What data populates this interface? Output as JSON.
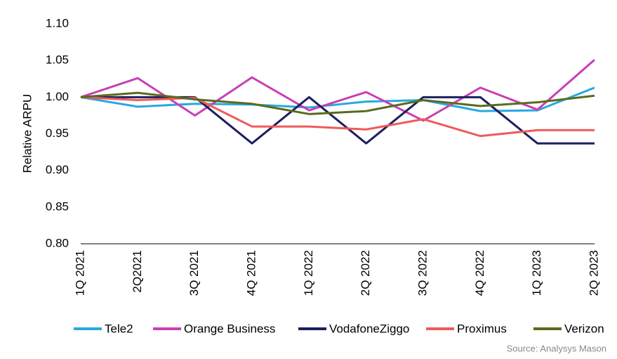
{
  "chart_data": {
    "type": "line",
    "y_label": "Relative ARPU",
    "source": "Source: Analysys Mason",
    "categories": [
      "1Q 2021",
      "2Q2021",
      "3Q 2021",
      "4Q 2021",
      "1Q 2022",
      "2Q 2022",
      "3Q 2022",
      "4Q 2022",
      "1Q 2023",
      "2Q 2023"
    ],
    "series": [
      {
        "name": "Tele2",
        "color": "#29a8e0",
        "values": [
          1.0,
          0.987,
          0.991,
          0.99,
          0.986,
          0.994,
          0.996,
          0.981,
          0.982,
          1.013
        ]
      },
      {
        "name": "Orange Business",
        "color": "#c93fb5",
        "values": [
          1.0,
          1.026,
          0.975,
          1.027,
          0.982,
          1.007,
          0.968,
          1.013,
          0.983,
          1.051
        ]
      },
      {
        "name": "VodafoneZiggo",
        "color": "#1c1f5e",
        "values": [
          1.0,
          1.0,
          1.0,
          0.937,
          1.0,
          0.937,
          1.0,
          1.0,
          0.937,
          0.937
        ]
      },
      {
        "name": "Proximus",
        "color": "#ef5b5b",
        "values": [
          1.0,
          0.996,
          0.999,
          0.96,
          0.96,
          0.956,
          0.97,
          0.947,
          0.955,
          0.955
        ]
      },
      {
        "name": "Verizon",
        "color": "#5a6b1e",
        "values": [
          1.0,
          1.006,
          0.997,
          0.991,
          0.977,
          0.981,
          0.996,
          0.988,
          0.993,
          1.002
        ]
      }
    ],
    "ylim": [
      0.8,
      1.1
    ],
    "yticks": [
      {
        "value": 0.8,
        "label": "0.80"
      },
      0.85,
      {
        "value": 0.9,
        "label": "0.90"
      },
      0.95,
      {
        "value": 1.0,
        "label": "1.00"
      },
      1.05,
      {
        "value": 1.1,
        "label": "1.10"
      }
    ],
    "legend": "bottom"
  }
}
